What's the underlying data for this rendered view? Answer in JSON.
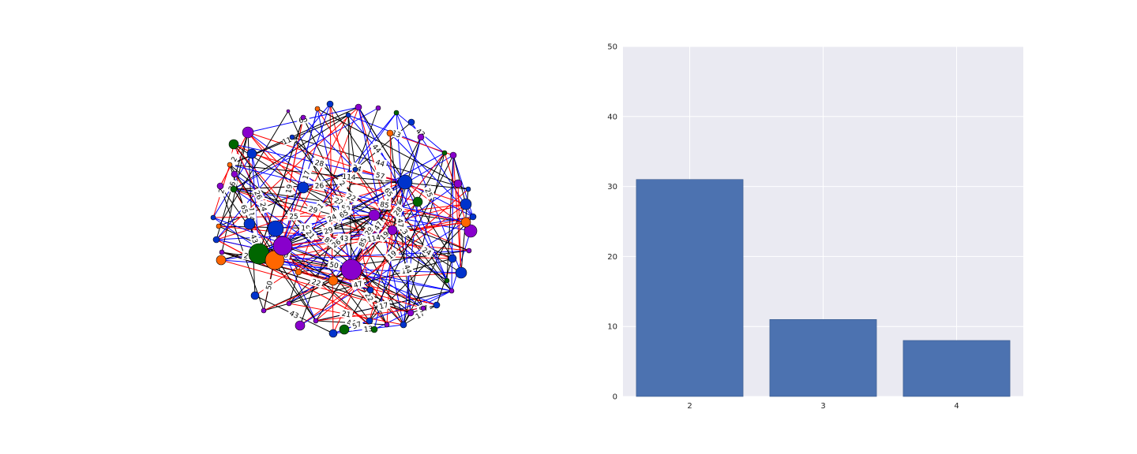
{
  "network": {
    "edge_colors": [
      "#ff0000",
      "#0000ff",
      "#000000"
    ],
    "node_colors": [
      "#0033cc",
      "#8800cc",
      "#006600",
      "#ff6600"
    ],
    "edge_labels": [
      "21",
      "114",
      "17",
      "44",
      "43",
      "26",
      "22",
      "57",
      "28",
      "50",
      "24",
      "19",
      "65",
      "13",
      "25",
      "29",
      "47",
      "85",
      "2"
    ]
  },
  "chart_data": {
    "type": "bar",
    "categories": [
      "2",
      "3",
      "4"
    ],
    "values": [
      31,
      11,
      8
    ],
    "ylim": [
      0,
      50
    ],
    "yticks": [
      "0",
      "10",
      "20",
      "30",
      "40",
      "50"
    ],
    "bar_color": "#4c72b0",
    "background": "#eaeaf2",
    "grid": true
  }
}
